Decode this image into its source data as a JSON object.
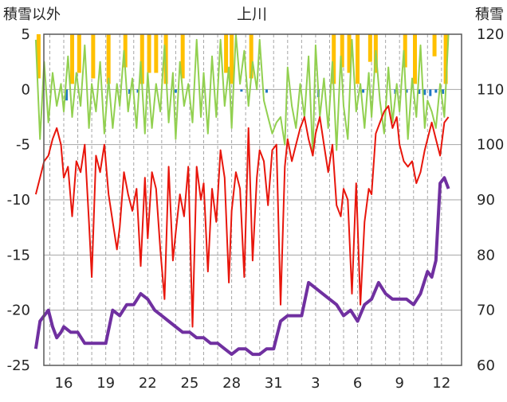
{
  "chart_data": {
    "type": "line",
    "title": "上川",
    "ylabel_left": "積雪以外",
    "ylabel_right": "積雪",
    "xlabel": "",
    "x_tick_labels": [
      "16",
      "19",
      "22",
      "25",
      "28",
      "31",
      "3",
      "6",
      "9",
      "12"
    ],
    "ylim_left": [
      -25,
      5
    ],
    "yticks_left": [
      "5",
      "0",
      "-5",
      "-10",
      "-15",
      "-20",
      "-25"
    ],
    "ylim_right": [
      60,
      120
    ],
    "yticks_right": [
      "120",
      "110",
      "100",
      "90",
      "80",
      "70",
      "60"
    ],
    "grid": "vertical dashed every day, horizontal at each y tick",
    "x_range_days": [
      14,
      43.5
    ],
    "colors": {
      "temperature": "#e8160c",
      "wind": "#92d050",
      "sunshine": "#ffc000",
      "precipitation": "#1f77c4",
      "snow_depth": "#7030a0",
      "grid": "#a6a6a6",
      "axis": "#595959"
    },
    "series": [
      {
        "key": "temperature",
        "axis": "left",
        "x": [
          14.0,
          14.3,
          14.6,
          14.9,
          15.2,
          15.5,
          15.8,
          16.0,
          16.3,
          16.6,
          16.9,
          17.2,
          17.5,
          17.8,
          18.0,
          18.3,
          18.6,
          18.9,
          19.2,
          19.5,
          19.8,
          20.0,
          20.3,
          20.6,
          20.9,
          21.2,
          21.5,
          21.8,
          22.0,
          22.3,
          22.6,
          22.9,
          23.2,
          23.5,
          23.8,
          24.0,
          24.3,
          24.6,
          24.9,
          25.2,
          25.5,
          25.8,
          26.0,
          26.3,
          26.6,
          26.9,
          27.2,
          27.5,
          27.8,
          28.0,
          28.3,
          28.6,
          28.9,
          29.2,
          29.5,
          29.8,
          30.0,
          30.3,
          30.6,
          30.9,
          31.2,
          31.5,
          31.8,
          32.0,
          32.3,
          32.6,
          32.9,
          33.2,
          33.5,
          33.8,
          34.0,
          34.3,
          34.6,
          34.9,
          35.2,
          35.5,
          35.8,
          36.0,
          36.3,
          36.6,
          36.9,
          37.2,
          37.5,
          37.8,
          38.0,
          38.3,
          38.6,
          38.9,
          39.2,
          39.5,
          39.8,
          40.0,
          40.3,
          40.6,
          40.9,
          41.2,
          41.5,
          41.8,
          42.0,
          42.3,
          42.6,
          42.9,
          43.2,
          43.5
        ],
        "values": [
          -9.5,
          -8.0,
          -6.5,
          -6.0,
          -4.5,
          -3.5,
          -5.0,
          -8.0,
          -7.0,
          -11.5,
          -6.5,
          -7.5,
          -5.0,
          -12.0,
          -17.0,
          -6.0,
          -7.5,
          -5.0,
          -9.5,
          -12.0,
          -14.5,
          -12.5,
          -7.5,
          -9.5,
          -11.0,
          -9.0,
          -16.0,
          -8.0,
          -13.5,
          -7.5,
          -9.0,
          -14.5,
          -19.0,
          -7.0,
          -15.5,
          -13.0,
          -9.5,
          -11.5,
          -7.0,
          -21.5,
          -7.0,
          -10.0,
          -8.5,
          -16.5,
          -9.0,
          -12.0,
          -5.5,
          -8.0,
          -17.5,
          -11.0,
          -7.5,
          -9.0,
          -17.0,
          -3.5,
          -15.5,
          -8.0,
          -5.5,
          -6.5,
          -10.5,
          -5.5,
          -5.0,
          -19.5,
          -7.0,
          -4.5,
          -6.5,
          -5.0,
          -3.5,
          -2.5,
          -4.5,
          -6.0,
          -4.0,
          -2.5,
          -5.0,
          -7.5,
          -5.0,
          -10.5,
          -11.5,
          -9.0,
          -10.0,
          -18.5,
          -8.5,
          -19.5,
          -12.0,
          -9.0,
          -9.5,
          -4.0,
          -3.0,
          -2.0,
          -1.5,
          -3.5,
          -2.5,
          -5.0,
          -6.5,
          -7.0,
          -6.5,
          -8.5,
          -7.5,
          -5.5,
          -4.5,
          -3.0,
          -4.5,
          -6.0,
          -3.0,
          -2.5
        ]
      },
      {
        "key": "wind",
        "axis": "left",
        "x": [
          14.0,
          14.3,
          14.6,
          14.9,
          15.2,
          15.5,
          15.8,
          16.0,
          16.3,
          16.6,
          16.9,
          17.2,
          17.5,
          17.8,
          18.0,
          18.3,
          18.6,
          18.9,
          19.2,
          19.5,
          19.8,
          20.0,
          20.3,
          20.6,
          20.9,
          21.2,
          21.5,
          21.8,
          22.0,
          22.3,
          22.6,
          22.9,
          23.2,
          23.5,
          23.8,
          24.0,
          24.3,
          24.6,
          24.9,
          25.2,
          25.5,
          25.8,
          26.0,
          26.3,
          26.6,
          26.9,
          27.2,
          27.5,
          27.8,
          28.0,
          28.3,
          28.6,
          28.9,
          29.2,
          29.5,
          29.8,
          30.0,
          30.3,
          30.6,
          30.9,
          31.2,
          31.5,
          31.8,
          32.0,
          32.3,
          32.6,
          32.9,
          33.2,
          33.5,
          33.8,
          34.0,
          34.3,
          34.6,
          34.9,
          35.2,
          35.5,
          35.8,
          36.0,
          36.3,
          36.6,
          36.9,
          37.2,
          37.5,
          37.8,
          38.0,
          38.3,
          38.6,
          38.9,
          39.2,
          39.5,
          39.8,
          40.0,
          40.3,
          40.6,
          40.9,
          41.2,
          41.5,
          41.8,
          42.0,
          42.3,
          42.6,
          42.9,
          43.2,
          43.5
        ],
        "values": [
          4.5,
          -4.5,
          2.5,
          -3.0,
          1.5,
          -1.5,
          0.5,
          -2.0,
          3.0,
          -2.5,
          1.5,
          -1.5,
          4.0,
          -3.5,
          0.5,
          -2.0,
          2.5,
          -4.0,
          1.0,
          -3.5,
          0.5,
          -1.5,
          3.5,
          -2.0,
          1.0,
          -3.5,
          2.5,
          -4.0,
          1.5,
          -3.5,
          0.5,
          -2.0,
          4.0,
          -3.0,
          1.5,
          -4.5,
          2.5,
          -1.5,
          0.5,
          -3.0,
          4.5,
          -2.5,
          1.5,
          -4.0,
          3.0,
          -2.5,
          4.5,
          -1.5,
          2.0,
          -3.5,
          5.0,
          0.5,
          3.5,
          -1.5,
          2.5,
          0.0,
          4.5,
          -1.0,
          -2.5,
          -4.0,
          -3.0,
          -2.5,
          -5.0,
          2.0,
          -1.5,
          -3.5,
          0.5,
          -2.5,
          3.0,
          -6.0,
          4.0,
          -2.5,
          1.0,
          -3.5,
          2.5,
          -5.5,
          3.0,
          -1.5,
          -4.5,
          4.5,
          -2.0,
          0.5,
          -3.5,
          1.5,
          -2.5,
          3.5,
          -1.0,
          -4.0,
          2.0,
          -3.0,
          0.5,
          -2.0,
          3.5,
          -4.5,
          1.0,
          -2.5,
          4.0,
          -3.5,
          -1.0,
          -2.0,
          -3.5,
          0.5,
          -2.5,
          5.0
        ]
      },
      {
        "key": "snow_depth",
        "axis": "right",
        "x": [
          14.0,
          14.3,
          14.6,
          14.9,
          15.2,
          15.5,
          15.8,
          16.0,
          16.5,
          17.0,
          17.5,
          18.0,
          18.5,
          19.0,
          19.5,
          20.0,
          20.5,
          21.0,
          21.5,
          22.0,
          22.5,
          23.0,
          23.5,
          24.0,
          24.5,
          25.0,
          25.5,
          26.0,
          26.5,
          27.0,
          27.5,
          28.0,
          28.5,
          29.0,
          29.5,
          30.0,
          30.5,
          31.0,
          31.5,
          32.0,
          32.5,
          33.0,
          33.5,
          34.0,
          34.5,
          35.0,
          35.5,
          36.0,
          36.5,
          37.0,
          37.5,
          38.0,
          38.5,
          39.0,
          39.5,
          40.0,
          40.5,
          41.0,
          41.5,
          42.0,
          42.3,
          42.6,
          42.9,
          43.2,
          43.5
        ],
        "values": [
          63,
          68,
          69,
          70,
          67,
          65,
          66,
          67,
          66,
          66,
          64,
          64,
          64,
          64,
          70,
          69,
          71,
          71,
          73,
          72,
          70,
          69,
          68,
          67,
          66,
          66,
          65,
          65,
          64,
          64,
          63,
          62,
          63,
          63,
          62,
          62,
          63,
          63,
          68,
          69,
          69,
          69,
          75,
          74,
          73,
          72,
          71,
          69,
          70,
          68,
          71,
          72,
          75,
          73,
          72,
          72,
          72,
          71,
          73,
          77,
          76,
          79,
          93,
          94,
          92
        ]
      },
      {
        "key": "sunshine",
        "axis": "left",
        "x": [
          14.2,
          16.6,
          17.1,
          18.1,
          19.2,
          20.4,
          21.6,
          22.1,
          22.6,
          23.3,
          24.5,
          27.6,
          28.0,
          29.4,
          35.3,
          35.9,
          36.4,
          37.0,
          37.9,
          38.3,
          40.4,
          41.1,
          42.5,
          43.3
        ],
        "values": [
          4.0,
          4.5,
          3.5,
          4.0,
          4.5,
          3.0,
          4.5,
          3.5,
          3.5,
          4.5,
          4.0,
          3.5,
          4.5,
          4.0,
          4.5,
          3.0,
          3.5,
          4.5,
          2.5,
          3.5,
          3.0,
          4.5,
          2.0,
          4.5
        ]
      },
      {
        "key": "precipitation",
        "axis": "left",
        "x": [
          16.2,
          20.7,
          21.3,
          24.0,
          28.7,
          30.5,
          34.2,
          37.4,
          39.7,
          40.5,
          41.4,
          41.8,
          42.2,
          42.6,
          43.1
        ],
        "values": [
          -1.0,
          -0.4,
          -0.3,
          -0.3,
          -0.2,
          -0.3,
          -0.7,
          -0.3,
          -0.4,
          -0.3,
          -0.4,
          -0.5,
          -0.6,
          -0.3,
          -0.4
        ]
      }
    ]
  }
}
